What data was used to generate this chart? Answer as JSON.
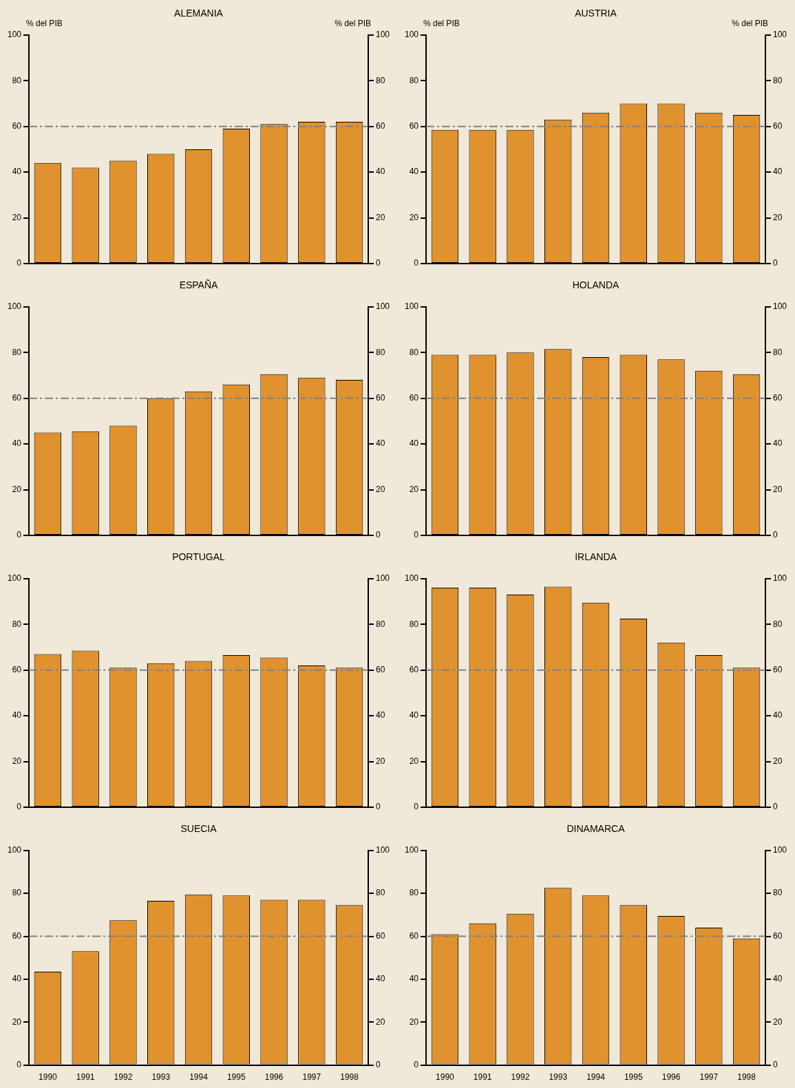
{
  "chart_data": [
    {
      "type": "bar",
      "title": "ALEMANIA",
      "ylabel": "% del PIB",
      "y2label": "% del PIB",
      "categories": [
        "1990",
        "1991",
        "1992",
        "1993",
        "1994",
        "1995",
        "1996",
        "1997",
        "1998"
      ],
      "values": [
        44,
        42,
        45,
        48,
        50,
        59,
        61,
        62,
        62
      ],
      "color": "#e0922f",
      "ylim": [
        0,
        100
      ],
      "yticks": [
        0,
        20,
        40,
        60,
        80,
        100
      ],
      "y2lim": [
        0,
        100
      ],
      "y2ticks": [
        0,
        20,
        40,
        60,
        80,
        100
      ],
      "ref_lines": [
        {
          "axis": "y",
          "value": 60,
          "color": "#808080",
          "line_style": "dashed"
        }
      ],
      "tick_labels": "y"
    },
    {
      "type": "bar",
      "title": "AUSTRIA",
      "ylabel": "% del PIB",
      "y2label": "% del PIB",
      "categories": [
        "1990",
        "1991",
        "1992",
        "1993",
        "1994",
        "1995",
        "1996",
        "1997",
        "1998"
      ],
      "values": [
        58.5,
        58.5,
        58.5,
        63,
        66,
        70,
        70,
        66,
        65
      ],
      "color": "#e0922f",
      "ylim": [
        0,
        100
      ],
      "yticks": [
        0,
        20,
        40,
        60,
        80,
        100
      ],
      "y2lim": [
        0,
        100
      ],
      "y2ticks": [
        0,
        20,
        40,
        60,
        80,
        100
      ],
      "ref_lines": [
        {
          "axis": "y",
          "value": 60,
          "color": "#808080",
          "line_style": "dashed"
        }
      ],
      "tick_labels": "y"
    },
    {
      "type": "bar",
      "title": "ESPAÑA",
      "categories": [
        "1990",
        "1991",
        "1992",
        "1993",
        "1994",
        "1995",
        "1996",
        "1997",
        "1998"
      ],
      "values": [
        45,
        45.5,
        48,
        60,
        63,
        66,
        70.5,
        69,
        68
      ],
      "color": "#e0922f",
      "ylim": [
        0,
        100
      ],
      "yticks": [
        0,
        20,
        40,
        60,
        80,
        100
      ],
      "y2lim": [
        0,
        100
      ],
      "y2ticks": [
        0,
        20,
        40,
        60,
        80,
        100
      ],
      "ref_lines": [
        {
          "axis": "y",
          "value": 60,
          "color": "#808080",
          "line_style": "dashed"
        }
      ],
      "tick_labels": "y"
    },
    {
      "type": "bar",
      "title": "HOLANDA",
      "categories": [
        "1990",
        "1991",
        "1992",
        "1993",
        "1994",
        "1995",
        "1996",
        "1997",
        "1998"
      ],
      "values": [
        79,
        79,
        80,
        81.5,
        78,
        79,
        77,
        72,
        70.5
      ],
      "color": "#e0922f",
      "ylim": [
        0,
        100
      ],
      "yticks": [
        0,
        20,
        40,
        60,
        80,
        100
      ],
      "y2lim": [
        0,
        100
      ],
      "y2ticks": [
        0,
        20,
        40,
        60,
        80,
        100
      ],
      "ref_lines": [
        {
          "axis": "y",
          "value": 60,
          "color": "#808080",
          "line_style": "dashed"
        }
      ],
      "tick_labels": "y"
    },
    {
      "type": "bar",
      "title": "PORTUGAL",
      "categories": [
        "1990",
        "1991",
        "1992",
        "1993",
        "1994",
        "1995",
        "1996",
        "1997",
        "1998"
      ],
      "values": [
        67,
        68.5,
        61,
        63,
        64,
        66.5,
        65.5,
        62,
        61
      ],
      "color": "#e0922f",
      "ylim": [
        0,
        100
      ],
      "yticks": [
        0,
        20,
        40,
        60,
        80,
        100
      ],
      "y2lim": [
        0,
        100
      ],
      "y2ticks": [
        0,
        20,
        40,
        60,
        80,
        100
      ],
      "ref_lines": [
        {
          "axis": "y",
          "value": 60,
          "color": "#808080",
          "line_style": "dashed"
        }
      ],
      "tick_labels": "y"
    },
    {
      "type": "bar",
      "title": "IRLANDA",
      "categories": [
        "1990",
        "1991",
        "1992",
        "1993",
        "1994",
        "1995",
        "1996",
        "1997",
        "1998"
      ],
      "values": [
        96,
        96,
        93,
        96.5,
        89.5,
        82.5,
        72,
        66.5,
        61
      ],
      "color": "#e0922f",
      "ylim": [
        0,
        100
      ],
      "yticks": [
        0,
        20,
        40,
        60,
        80,
        100
      ],
      "y2lim": [
        0,
        100
      ],
      "y2ticks": [
        0,
        20,
        40,
        60,
        80,
        100
      ],
      "ref_lines": [
        {
          "axis": "y",
          "value": 60,
          "color": "#808080",
          "line_style": "dashed"
        }
      ],
      "tick_labels": "y"
    },
    {
      "type": "bar",
      "title": "SUECIA",
      "categories": [
        "1990",
        "1991",
        "1992",
        "1993",
        "1994",
        "1995",
        "1996",
        "1997",
        "1998"
      ],
      "values": [
        43.5,
        53,
        67.5,
        76.5,
        79.5,
        79,
        77,
        77,
        74.5
      ],
      "color": "#e0922f",
      "ylim": [
        0,
        100
      ],
      "yticks": [
        0,
        20,
        40,
        60,
        80,
        100
      ],
      "y2lim": [
        0,
        100
      ],
      "y2ticks": [
        0,
        20,
        40,
        60,
        80,
        100
      ],
      "ref_lines": [
        {
          "axis": "y",
          "value": 60,
          "color": "#808080",
          "line_style": "dashed"
        }
      ]
    },
    {
      "type": "bar",
      "title": "DINAMARCA",
      "categories": [
        "1990",
        "1991",
        "1992",
        "1993",
        "1994",
        "1995",
        "1996",
        "1997",
        "1998"
      ],
      "values": [
        61,
        66,
        70.5,
        82.5,
        79,
        74.5,
        69.5,
        64,
        59
      ],
      "color": "#e0922f",
      "ylim": [
        0,
        100
      ],
      "yticks": [
        0,
        20,
        40,
        60,
        80,
        100
      ],
      "y2lim": [
        0,
        100
      ],
      "y2ticks": [
        0,
        20,
        40,
        60,
        80,
        100
      ],
      "ref_lines": [
        {
          "axis": "y",
          "value": 60,
          "color": "#808080",
          "line_style": "dashed"
        }
      ]
    }
  ]
}
